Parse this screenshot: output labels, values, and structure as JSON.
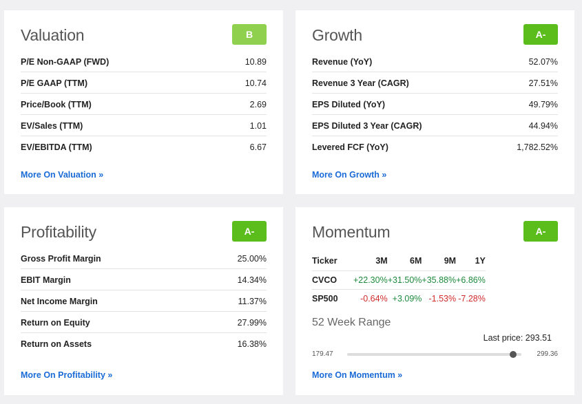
{
  "valuation": {
    "title": "Valuation",
    "grade": "B",
    "rows": [
      {
        "label": "P/E Non-GAAP (FWD)",
        "value": "10.89"
      },
      {
        "label": "P/E GAAP (TTM)",
        "value": "10.74"
      },
      {
        "label": "Price/Book (TTM)",
        "value": "2.69"
      },
      {
        "label": "EV/Sales (TTM)",
        "value": "1.01"
      },
      {
        "label": "EV/EBITDA (TTM)",
        "value": "6.67"
      }
    ],
    "more": "More On Valuation »"
  },
  "growth": {
    "title": "Growth",
    "grade": "A-",
    "rows": [
      {
        "label": "Revenue (YoY)",
        "value": "52.07%"
      },
      {
        "label": "Revenue 3 Year (CAGR)",
        "value": "27.51%"
      },
      {
        "label": "EPS Diluted (YoY)",
        "value": "49.79%"
      },
      {
        "label": "EPS Diluted 3 Year (CAGR)",
        "value": "44.94%"
      },
      {
        "label": "Levered FCF (YoY)",
        "value": "1,782.52%"
      }
    ],
    "more": "More On Growth »"
  },
  "profitability": {
    "title": "Profitability",
    "grade": "A-",
    "rows": [
      {
        "label": "Gross Profit Margin",
        "value": "25.00%"
      },
      {
        "label": "EBIT Margin",
        "value": "14.34%"
      },
      {
        "label": "Net Income Margin",
        "value": "11.37%"
      },
      {
        "label": "Return on Equity",
        "value": "27.99%"
      },
      {
        "label": "Return on Assets",
        "value": "16.38%"
      }
    ],
    "more": "More On Profitability »"
  },
  "momentum": {
    "title": "Momentum",
    "grade": "A-",
    "headers": [
      "Ticker",
      "3M",
      "6M",
      "9M",
      "1Y"
    ],
    "rows": [
      {
        "ticker": "CVCO",
        "values": [
          "+22.30%",
          "+31.50%",
          "+35.88%",
          "+6.86%"
        ]
      },
      {
        "ticker": "SP500",
        "values": [
          "-0.64%",
          "+3.09%",
          "-1.53%",
          "-7.28%"
        ]
      }
    ],
    "range": {
      "title": "52 Week Range",
      "last_price_label": "Last price: 293.51",
      "low": "179.47",
      "high": "299.36",
      "low_value": 179.47,
      "high_value": 299.36,
      "last_value": 293.51
    },
    "more": "More On Momentum »"
  },
  "colors": {
    "grade_b": "#8fd14f",
    "grade_a_minus": "#5bbd1c",
    "positive": "#1e8a3c",
    "negative": "#d12a2a",
    "link": "#1a6bd6"
  }
}
